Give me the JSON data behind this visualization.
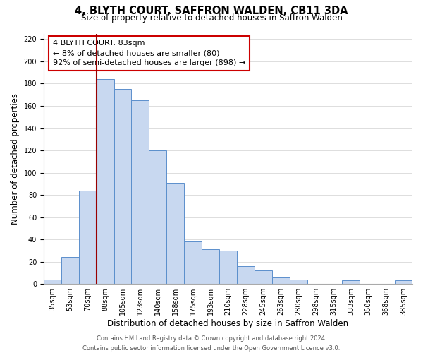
{
  "title": "4, BLYTH COURT, SAFFRON WALDEN, CB11 3DA",
  "subtitle": "Size of property relative to detached houses in Saffron Walden",
  "xlabel": "Distribution of detached houses by size in Saffron Walden",
  "ylabel": "Number of detached properties",
  "bar_labels": [
    "35sqm",
    "53sqm",
    "70sqm",
    "88sqm",
    "105sqm",
    "123sqm",
    "140sqm",
    "158sqm",
    "175sqm",
    "193sqm",
    "210sqm",
    "228sqm",
    "245sqm",
    "263sqm",
    "280sqm",
    "298sqm",
    "315sqm",
    "333sqm",
    "350sqm",
    "368sqm",
    "385sqm"
  ],
  "bar_values": [
    4,
    24,
    84,
    184,
    175,
    165,
    120,
    91,
    38,
    31,
    30,
    16,
    12,
    6,
    4,
    0,
    0,
    3,
    0,
    0,
    3
  ],
  "bar_color": "#c8d8f0",
  "bar_edge_color": "#5b8fcc",
  "vline_color": "#990000",
  "vline_index": 3,
  "ylim": [
    0,
    225
  ],
  "yticks": [
    0,
    20,
    40,
    60,
    80,
    100,
    120,
    140,
    160,
    180,
    200,
    220
  ],
  "annotation_title": "4 BLYTH COURT: 83sqm",
  "annotation_line1": "← 8% of detached houses are smaller (80)",
  "annotation_line2": "92% of semi-detached houses are larger (898) →",
  "footer_line1": "Contains HM Land Registry data © Crown copyright and database right 2024.",
  "footer_line2": "Contains public sector information licensed under the Open Government Licence v3.0.",
  "title_fontsize": 10.5,
  "subtitle_fontsize": 8.5,
  "axis_label_fontsize": 8.5,
  "tick_fontsize": 7,
  "footer_fontsize": 6,
  "annotation_fontsize": 8
}
